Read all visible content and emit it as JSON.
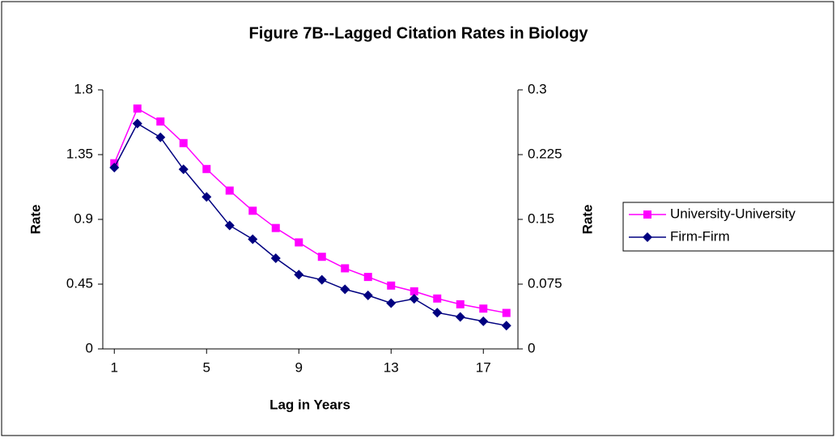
{
  "chart_data": {
    "type": "line",
    "title": "Figure 7B--Lagged Citation Rates in Biology",
    "x_label": "Lag in Years",
    "y_label": "Rate",
    "y2_label": "Rate",
    "x": [
      1,
      2,
      3,
      4,
      5,
      6,
      7,
      8,
      9,
      10,
      11,
      12,
      13,
      14,
      15,
      16,
      17,
      18
    ],
    "xlim": [
      0.5,
      18.5
    ],
    "xticks": [
      1,
      5,
      9,
      13,
      17
    ],
    "ylim": [
      0,
      1.8
    ],
    "yticks": [
      0,
      0.45,
      0.9,
      1.35,
      1.8
    ],
    "y2lim": [
      0,
      0.3
    ],
    "y2ticks": [
      0,
      0.075,
      0.15,
      0.225,
      0.3
    ],
    "legend": "right",
    "series": [
      {
        "name": "University-University",
        "color": "#ff00ff",
        "marker": "square",
        "values": [
          1.29,
          1.67,
          1.58,
          1.43,
          1.25,
          1.1,
          0.96,
          0.84,
          0.74,
          0.64,
          0.56,
          0.5,
          0.44,
          0.4,
          0.35,
          0.31,
          0.28,
          0.25
        ]
      },
      {
        "name": "Firm-Firm",
        "color": "#000080",
        "marker": "diamond",
        "axis": "y2",
        "values": [
          0.21,
          0.261,
          0.245,
          0.208,
          0.176,
          0.143,
          0.127,
          0.105,
          0.086,
          0.08,
          0.069,
          0.062,
          0.053,
          0.058,
          0.042,
          0.037,
          0.032,
          0.027
        ]
      }
    ]
  }
}
